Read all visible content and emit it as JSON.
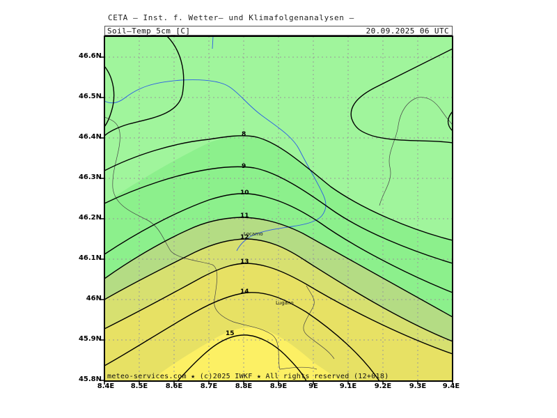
{
  "header": {
    "title": "CETA — Inst. f. Wetter— und Klimafolgenanalysen —",
    "field": "Soil—Temp_5cm_[C]",
    "valid_time": "20.09.2025 06 UTC"
  },
  "axes": {
    "lat_labels": [
      "46.6N",
      "46.5N",
      "46.4N",
      "46.3N",
      "46.2N",
      "46.1N",
      "46N",
      "45.9N",
      "45.8N"
    ],
    "lon_labels": [
      "8.4E",
      "8.5E",
      "8.6E",
      "8.7E",
      "8.8E",
      "8.9E",
      "9E",
      "9.1E",
      "9.2E",
      "9.3E",
      "9.4E"
    ]
  },
  "contour_labels": [
    "8",
    "9",
    "10",
    "11",
    "12",
    "13",
    "14",
    "15"
  ],
  "cities": {
    "locarno": "Locarno",
    "lugano": "Lugano"
  },
  "footer": "meteo-services.com ★ (c)2025 IWKF ★ All rights reserved (12+018)",
  "colors": {
    "band_lt8": "#a0f59c",
    "band_8_10": "#8cf08c",
    "band_10_12": "#b4dc84",
    "band_12_13": "#d7e070",
    "band_13_14": "#e7e164",
    "band_gt14": "#fcf064",
    "contour": "#000000",
    "river": "#2a5ce6",
    "border": "#444444",
    "grid": "#999999"
  }
}
